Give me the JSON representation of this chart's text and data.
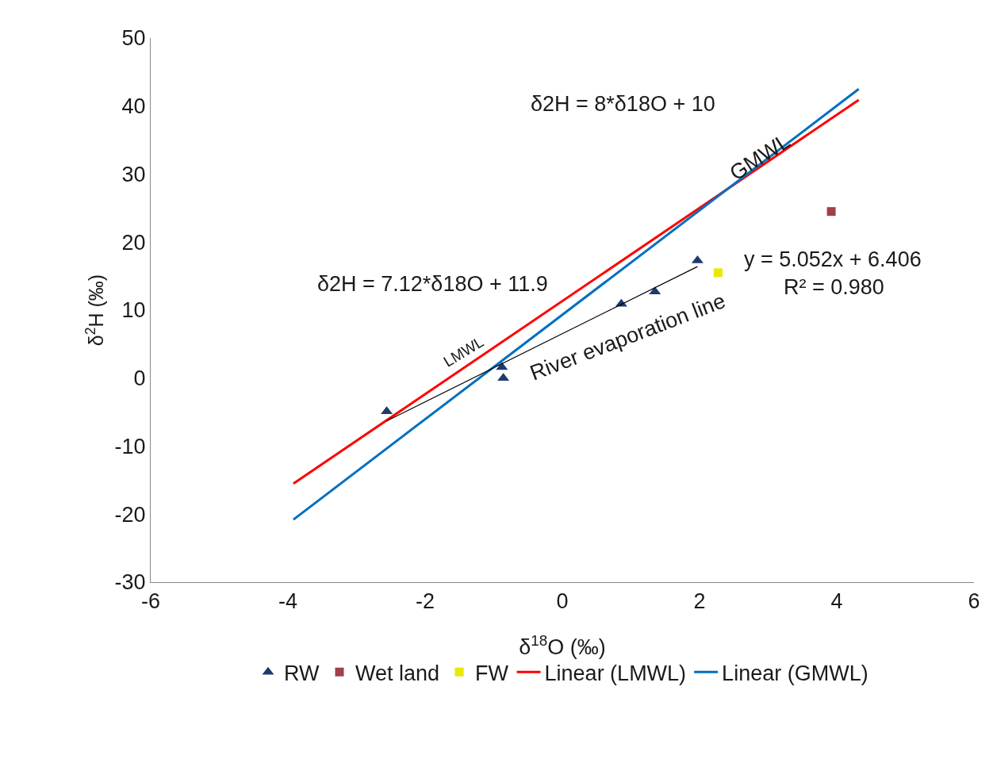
{
  "chart_data": {
    "type": "scatter",
    "xlabel": "δ$^{18}$O (‰)",
    "ylabel": "δ$^{2}$H (‰)",
    "xlim": [
      -6,
      6
    ],
    "xticks": [
      -6,
      -4,
      -2,
      0,
      2,
      4,
      6
    ],
    "ylim": [
      -30,
      50
    ],
    "yticks": [
      -30,
      -20,
      -10,
      0,
      10,
      20,
      30,
      40,
      50
    ],
    "grid": false,
    "legend": "bottom",
    "series": [
      {
        "name": "RW",
        "marker": "triangle",
        "color": "#1f3a6e",
        "x": [
          -2.56,
          -0.88,
          -0.86,
          0.86,
          1.35,
          1.97
        ],
        "values": [
          -4.9,
          1.6,
          0,
          10.9,
          12.7,
          17.3
        ]
      },
      {
        "name": "Wet land",
        "marker": "square",
        "color": "#a0404a",
        "x": [
          3.92
        ],
        "values": [
          24.5
        ]
      },
      {
        "name": "FW",
        "marker": "square",
        "color": "#e8e800",
        "x": [
          2.27
        ],
        "values": [
          15.5
        ]
      },
      {
        "name": "Linear (LMWL)",
        "type": "line",
        "marker": "none",
        "color": "#ff0000",
        "x": [
          -3.92,
          4.32
        ],
        "values": [
          -15.5,
          40.9
        ]
      },
      {
        "name": "Linear (GMWL)",
        "type": "line",
        "marker": "none",
        "color": "#0070c0",
        "x": [
          -3.92,
          4.32
        ],
        "values": [
          -20.8,
          42.5
        ]
      },
      {
        "type": "line",
        "marker": "none",
        "color": "#000000",
        "x": [
          -2.56,
          1.97
        ],
        "values": [
          -6.3,
          16.4
        ]
      }
    ],
    "annotations": [
      "δ2H = 8*δ18O + 10",
      "GMWL",
      "LMWL",
      "δ2H = 7.12*δ18O + 11.9",
      "y = 5.052x + 6.406",
      "R² = 0.980",
      "River evaporation line"
    ]
  }
}
